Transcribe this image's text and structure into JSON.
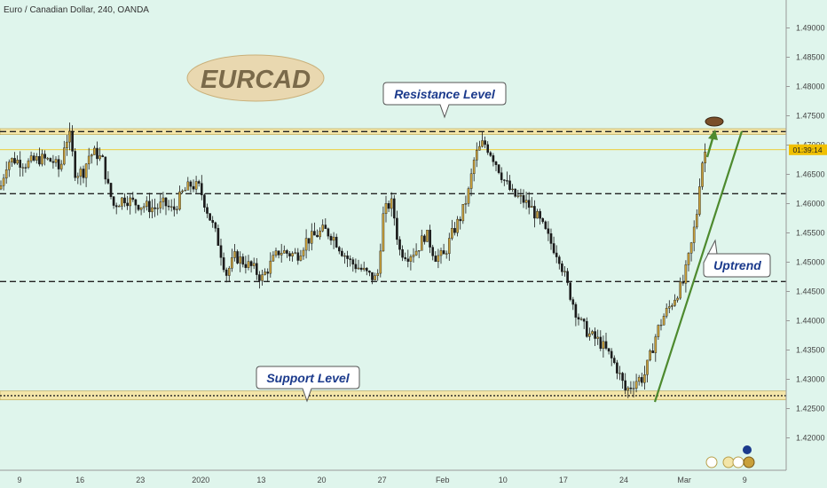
{
  "chart_data": {
    "type": "candlestick",
    "symbol": "Euro / Canadian Dollar, 240, OANDA",
    "title_badge": "EURCAD",
    "price_badge": "01:39:14",
    "y_ticks": [
      "1.49000",
      "1.48500",
      "1.48000",
      "1.47500",
      "1.47000",
      "1.46500",
      "1.46000",
      "1.45500",
      "1.45000",
      "1.44500",
      "1.44000",
      "1.43500",
      "1.43000",
      "1.42500",
      "1.42000"
    ],
    "ylim": [
      1.4175,
      1.4925
    ],
    "x_ticks": [
      "9",
      "16",
      "23",
      "2020",
      "13",
      "20",
      "27",
      "Feb",
      "10",
      "17",
      "24",
      "Mar",
      "9"
    ],
    "levels": {
      "resistance_zone": [
        1.4718,
        1.4728
      ],
      "resistance_line": 1.4723,
      "current_price": 1.4692,
      "mid_resistance": 1.4617,
      "mid_support": 1.4467,
      "support_zone": [
        1.4265,
        1.428
      ],
      "support_line": 1.4272
    },
    "annotations": {
      "resistance": "Resistance Level",
      "support": "Support Level",
      "uptrend": "Uptrend"
    },
    "colors": {
      "up": "#c9a03a",
      "down": "#1a1a1a",
      "zone": "#f3e5a8",
      "trendline": "#4d8a2e",
      "badge": "#e9d8b0",
      "badge_text": "#7a6a4a",
      "callout_text": "#1b3a8c",
      "price_line": "#f0c000"
    },
    "path_points": [
      [
        0,
        1.4625
      ],
      [
        8,
        1.4672
      ],
      [
        16,
        1.4675
      ],
      [
        30,
        1.4668
      ],
      [
        45,
        1.4677
      ],
      [
        60,
        1.4672
      ],
      [
        68,
        1.4655
      ],
      [
        72,
        1.47
      ],
      [
        78,
        1.4718
      ],
      [
        85,
        1.4652
      ],
      [
        94,
        1.4655
      ],
      [
        100,
        1.4682
      ],
      [
        108,
        1.4687
      ],
      [
        116,
        1.4672
      ],
      [
        122,
        1.4627
      ],
      [
        128,
        1.4597
      ],
      [
        140,
        1.461
      ],
      [
        150,
        1.4602
      ],
      [
        160,
        1.4597
      ],
      [
        175,
        1.4592
      ],
      [
        185,
        1.46
      ],
      [
        195,
        1.4587
      ],
      [
        205,
        1.4617
      ],
      [
        215,
        1.4632
      ],
      [
        225,
        1.4627
      ],
      [
        235,
        1.4582
      ],
      [
        245,
        1.454
      ],
      [
        255,
        1.448
      ],
      [
        265,
        1.451
      ],
      [
        275,
        1.45
      ],
      [
        285,
        1.449
      ],
      [
        295,
        1.4472
      ],
      [
        305,
        1.4497
      ],
      [
        315,
        1.452
      ],
      [
        325,
        1.4515
      ],
      [
        335,
        1.4512
      ],
      [
        345,
        1.4537
      ],
      [
        355,
        1.4545
      ],
      [
        365,
        1.4555
      ],
      [
        375,
        1.4545
      ],
      [
        385,
        1.452
      ],
      [
        395,
        1.45
      ],
      [
        405,
        1.449
      ],
      [
        415,
        1.4478
      ],
      [
        425,
        1.447
      ],
      [
        432,
        1.458
      ],
      [
        437,
        1.4597
      ],
      [
        442,
        1.46
      ],
      [
        450,
        1.452
      ],
      [
        460,
        1.4512
      ],
      [
        470,
        1.4522
      ],
      [
        480,
        1.455
      ],
      [
        490,
        1.451
      ],
      [
        500,
        1.451
      ],
      [
        510,
        1.455
      ],
      [
        520,
        1.458
      ],
      [
        528,
        1.462
      ],
      [
        535,
        1.468
      ],
      [
        545,
        1.4705
      ],
      [
        552,
        1.469
      ],
      [
        560,
        1.4667
      ],
      [
        568,
        1.464
      ],
      [
        578,
        1.4615
      ],
      [
        590,
        1.4605
      ],
      [
        600,
        1.459
      ],
      [
        610,
        1.4565
      ],
      [
        620,
        1.4535
      ],
      [
        630,
        1.451
      ],
      [
        640,
        1.4457
      ],
      [
        648,
        1.442
      ],
      [
        655,
        1.4395
      ],
      [
        665,
        1.4375
      ],
      [
        675,
        1.4365
      ],
      [
        685,
        1.4345
      ],
      [
        695,
        1.432
      ],
      [
        705,
        1.428
      ],
      [
        712,
        1.429
      ],
      [
        718,
        1.43
      ],
      [
        725,
        1.4302
      ],
      [
        732,
        1.4335
      ],
      [
        740,
        1.438
      ],
      [
        748,
        1.4408
      ],
      [
        755,
        1.4425
      ],
      [
        762,
        1.4445
      ],
      [
        770,
        1.4465
      ],
      [
        778,
        1.452
      ],
      [
        785,
        1.458
      ],
      [
        790,
        1.4665
      ],
      [
        795,
        1.469
      ]
    ]
  }
}
